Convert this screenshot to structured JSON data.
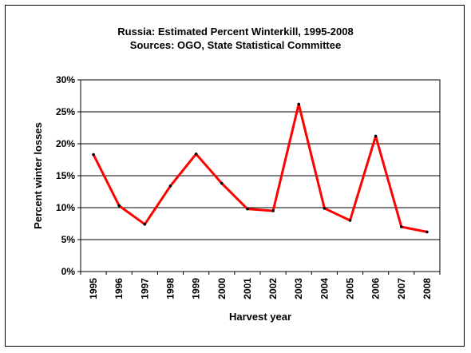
{
  "chart_data": {
    "type": "line",
    "title": "Russia:  Estimated Percent Winterkill, 1995-2008",
    "subtitle": "Sources: OGO, State Statistical Committee",
    "xlabel": "Harvest year",
    "ylabel": "Percent winter losses",
    "categories": [
      "1995",
      "1996",
      "1997",
      "1998",
      "1999",
      "2000",
      "2001",
      "2002",
      "2003",
      "2004",
      "2005",
      "2006",
      "2007",
      "2008"
    ],
    "series": [
      {
        "values": [
          18.3,
          10.3,
          7.4,
          13.4,
          18.4,
          13.8,
          9.8,
          9.5,
          26.2,
          9.9,
          8.0,
          21.2,
          7.0,
          6.2
        ]
      }
    ],
    "ylim": [
      0,
      30
    ],
    "yticks": [
      0,
      5,
      10,
      15,
      20,
      25,
      30
    ],
    "ytick_labels": [
      "0%",
      "5%",
      "10%",
      "15%",
      "20%",
      "25%",
      "30%"
    ],
    "grid": true,
    "legend": "none",
    "colors": {
      "line": "#ff0000",
      "marker": "#000000",
      "grid": "#000000"
    }
  }
}
